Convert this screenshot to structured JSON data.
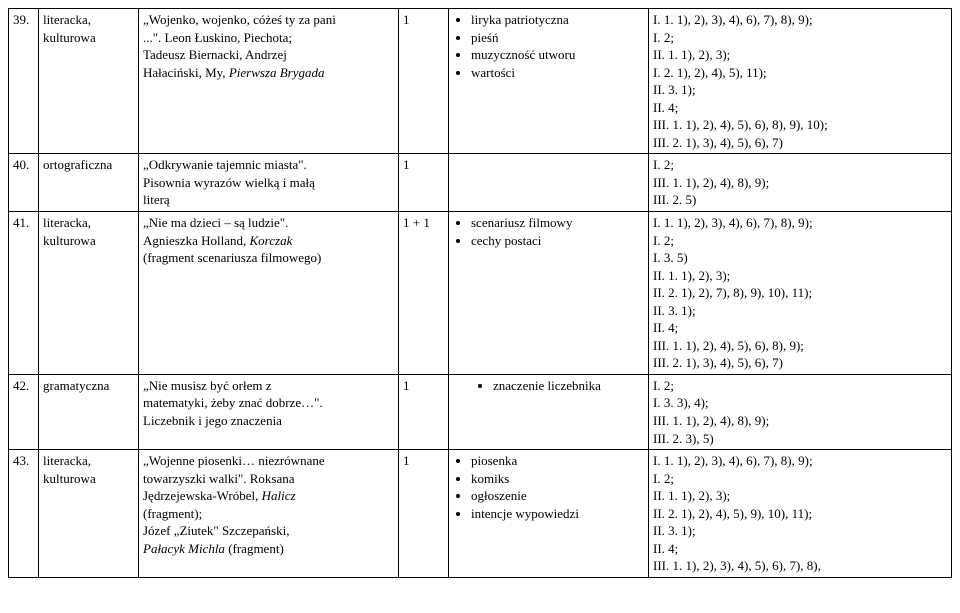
{
  "table": {
    "font_family": "Times New Roman",
    "font_size_pt": 11,
    "border_color": "#000000",
    "background_color": "#ffffff",
    "rows": [
      {
        "num": "39.",
        "type": "literacka,\nkulturowa",
        "topic_lines": [
          {
            "text": "„Wojenko, wojenko, cóżeś ty za pani"
          },
          {
            "text": "...\". Leon Łuskino, Piechota;"
          },
          {
            "text": "Tadeusz Biernacki, Andrzej"
          },
          {
            "text": "Hałaciński, My, Pierwsza Brygada",
            "italic_from_word": 2
          }
        ],
        "hours": "1",
        "terms": [
          "liryka patriotyczna",
          "pieśń",
          "muzyczność utworu",
          "wartości"
        ],
        "terms_indent": false,
        "standards": "I. 1. 1), 2), 3), 4), 6), 7), 8), 9);\nI. 2;\nII. 1. 1), 2), 3);\nI. 2. 1), 2), 4), 5), 11);\nII. 3. 1);\nII. 4;\nIII. 1. 1), 2), 4), 5), 6), 8), 9), 10);\nIII. 2. 1), 3), 4), 5), 6), 7)"
      },
      {
        "num": "40.",
        "type": "ortograficzna",
        "topic_lines": [
          {
            "text": "„Odkrywanie tajemnic miasta\"."
          },
          {
            "text": "Pisownia wyrazów wielką i małą"
          },
          {
            "text": "literą"
          }
        ],
        "hours": "1",
        "terms": [],
        "terms_indent": false,
        "standards": "I. 2;\nIII. 1. 1), 2), 4), 8), 9);\nIII. 2. 5)"
      },
      {
        "num": "41.",
        "type": "literacka,\nkulturowa",
        "topic_lines": [
          {
            "text": "„Nie ma dzieci – są ludzie\"."
          },
          {
            "text": "Agnieszka Holland, Korczak",
            "italic_from_word": 2
          },
          {
            "text": "(fragment scenariusza filmowego)"
          }
        ],
        "hours": "1 + 1",
        "terms": [
          "scenariusz filmowy",
          "cechy postaci"
        ],
        "terms_indent": false,
        "standards": "I. 1. 1), 2), 3), 4), 6), 7), 8), 9);\nI. 2;\nI. 3. 5)\nII. 1. 1), 2), 3);\nII. 2. 1), 2), 7), 8), 9), 10), 11);\nII. 3. 1);\nII. 4;\nIII. 1. 1), 2), 4), 5), 6), 8), 9);\nIII. 2. 1), 3), 4), 5), 6), 7)"
      },
      {
        "num": "42.",
        "type": "gramatyczna",
        "topic_lines": [
          {
            "text": "„Nie musisz być orłem z"
          },
          {
            "text": "matematyki, żeby znać dobrze…\"."
          },
          {
            "text": "Liczebnik i jego znaczenia"
          }
        ],
        "hours": "1",
        "terms": [
          "znaczenie liczebnika"
        ],
        "terms_indent": true,
        "standards": "I. 2;\nI. 3. 3), 4);\nIII. 1. 1), 2), 4), 8), 9);\nIII. 2. 3), 5)"
      },
      {
        "num": "43.",
        "type": "literacka,\nkulturowa",
        "topic_lines": [
          {
            "text": "„Wojenne piosenki… niezrównane"
          },
          {
            "text": "towarzyszki walki\". Roksana"
          },
          {
            "text": "Jędrzejewska-Wróbel, Halicz",
            "italic_from_word": 1
          },
          {
            "text": "(fragment);"
          },
          {
            "text": "Józef „Ziutek\" Szczepański,"
          },
          {
            "text": "Pałacyk Michla (fragment)",
            "italic_prefix_words": 2
          }
        ],
        "hours": "1",
        "terms": [
          "piosenka",
          "komiks",
          "ogłoszenie",
          "intencje wypowiedzi"
        ],
        "terms_indent": false,
        "standards": "I. 1. 1), 2), 3), 4), 6), 7), 8), 9);\nI. 2;\nII. 1. 1), 2), 3);\nII. 2. 1), 2), 4), 5), 9), 10), 11);\nII. 3. 1);\nII. 4;\nIII. 1. 1), 2), 3), 4), 5), 6), 7), 8),"
      }
    ]
  }
}
